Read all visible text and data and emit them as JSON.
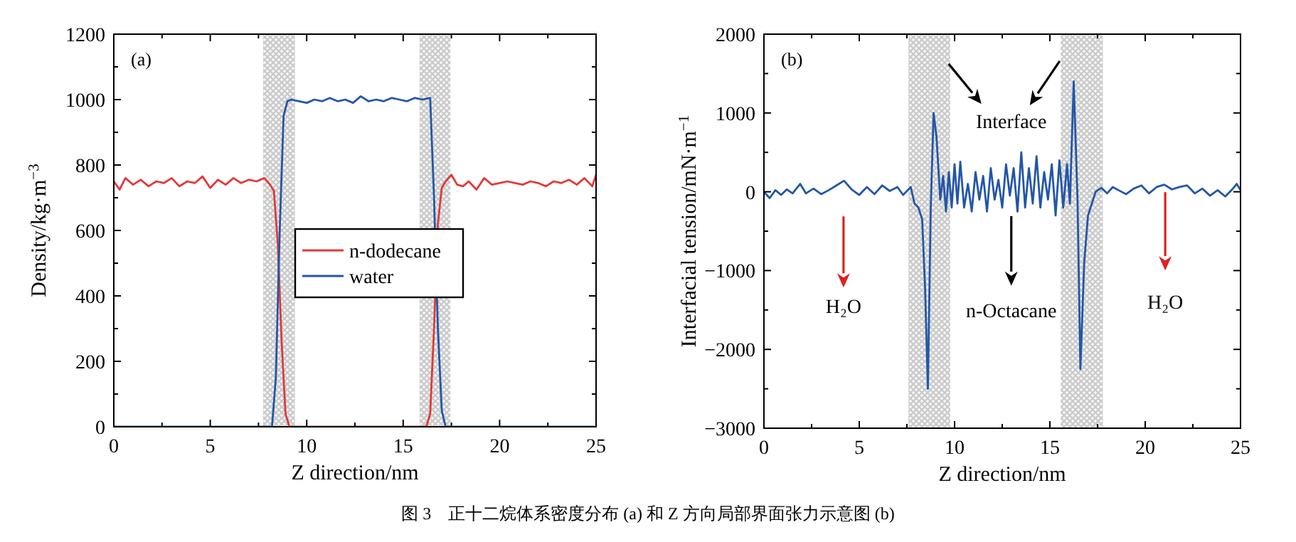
{
  "chart_data": [
    {
      "type": "line",
      "xlabel": "Z direction/nm",
      "ylabel": "Density/kg·m$^{−3}$",
      "xlim": [
        0,
        25
      ],
      "xticks": [
        0,
        5,
        10,
        15,
        20,
        25
      ],
      "ylim": [
        0,
        1200
      ],
      "yticks": [
        0,
        200,
        400,
        600,
        800,
        1000,
        1200
      ],
      "grid": false,
      "legend": "center",
      "annotations": [
        "(a)",
        "图 3　正十二烷体系密度分布 (a) 和 Z 方向局部界面张力示意图 (b)"
      ],
      "bands": [
        {
          "axis": "x",
          "from": 7.74,
          "to": 9.39,
          "color": "#c8c8c8"
        },
        {
          "axis": "x",
          "from": 15.85,
          "to": 17.45,
          "color": "#c8c8c8"
        }
      ],
      "series": [
        {
          "name": "n-dodecane",
          "color": "#e03a3a",
          "x": [
            0,
            0.3,
            0.6,
            1.0,
            1.4,
            1.8,
            2.2,
            2.6,
            3.0,
            3.4,
            3.8,
            4.2,
            4.6,
            5.0,
            5.4,
            5.8,
            6.2,
            6.6,
            7.0,
            7.4,
            7.8,
            8.1,
            8.3,
            8.5,
            8.7,
            8.9,
            9.1,
            16.2,
            16.4,
            16.6,
            16.8,
            17.0,
            17.2,
            17.5,
            17.8,
            18.1,
            18.4,
            18.8,
            19.2,
            19.6,
            20.0,
            20.4,
            20.8,
            21.2,
            21.6,
            22.0,
            22.4,
            22.8,
            23.2,
            23.6,
            24.0,
            24.4,
            24.8,
            25
          ],
          "values": [
            750,
            725,
            760,
            740,
            755,
            735,
            750,
            745,
            760,
            735,
            750,
            745,
            765,
            730,
            755,
            740,
            760,
            745,
            755,
            750,
            760,
            740,
            720,
            560,
            260,
            40,
            0,
            0,
            40,
            300,
            620,
            730,
            750,
            770,
            740,
            735,
            750,
            725,
            760,
            740,
            745,
            750,
            745,
            740,
            750,
            745,
            735,
            750,
            745,
            755,
            740,
            760,
            735,
            770
          ]
        },
        {
          "name": "water",
          "color": "#2356a8",
          "x": [
            0,
            8.2,
            8.4,
            8.6,
            8.8,
            9.0,
            9.2,
            9.6,
            10.0,
            10.4,
            10.8,
            11.2,
            11.6,
            12.0,
            12.4,
            12.8,
            13.2,
            13.6,
            14.0,
            14.4,
            14.8,
            15.2,
            15.6,
            16.0,
            16.4,
            16.6,
            16.8,
            17.0,
            17.2,
            25
          ],
          "values": [
            0,
            0,
            150,
            600,
            950,
            995,
            1000,
            995,
            990,
            1000,
            995,
            1005,
            995,
            1000,
            990,
            1010,
            995,
            1000,
            995,
            1005,
            1000,
            995,
            1005,
            1000,
            1005,
            700,
            300,
            50,
            0,
            0
          ]
        }
      ]
    },
    {
      "type": "line",
      "xlabel": "Z direction/nm",
      "ylabel": "Interfacial tension/mN·m$^{−1}$",
      "xlim": [
        0,
        25
      ],
      "xticks": [
        0,
        5,
        10,
        15,
        20,
        25
      ],
      "ylim": [
        -3000,
        2000
      ],
      "yticks": [
        {
          "value": -3000,
          "label": "−3000"
        },
        {
          "value": -2000,
          "label": "−2000"
        },
        {
          "value": -1000,
          "label": "−1000"
        },
        0,
        1000,
        2000
      ],
      "grid": false,
      "annotations": [
        "(b)",
        "Interface",
        "H₂O",
        "n-Octacane",
        "H₂O"
      ],
      "bands": [
        {
          "axis": "x",
          "from": 7.58,
          "to": 9.77,
          "color": "#c8c8c8"
        },
        {
          "axis": "x",
          "from": 15.57,
          "to": 17.78,
          "color": "#c8c8c8"
        }
      ],
      "series": [
        {
          "color": "#2356a8",
          "x": [
            0,
            0.3,
            0.6,
            0.9,
            1.2,
            1.5,
            1.9,
            2.2,
            2.6,
            3.0,
            3.4,
            3.8,
            4.2,
            4.6,
            5.0,
            5.4,
            5.8,
            6.2,
            6.6,
            7.0,
            7.3,
            7.7,
            7.9,
            8.1,
            8.3,
            8.45,
            8.6,
            8.75,
            8.9,
            9.05,
            9.25,
            9.4,
            9.55,
            9.7,
            9.85,
            10.0,
            10.15,
            10.3,
            10.5,
            10.7,
            10.9,
            11.1,
            11.3,
            11.5,
            11.7,
            11.9,
            12.1,
            12.3,
            12.5,
            12.7,
            12.9,
            13.1,
            13.3,
            13.5,
            13.7,
            13.9,
            14.1,
            14.3,
            14.5,
            14.7,
            14.9,
            15.1,
            15.3,
            15.5,
            15.7,
            15.9,
            16.05,
            16.25,
            16.45,
            16.6,
            16.8,
            17.0,
            17.2,
            17.4,
            17.7,
            18.0,
            18.3,
            18.6,
            19.0,
            19.4,
            19.8,
            20.2,
            20.6,
            21.0,
            21.4,
            21.8,
            22.2,
            22.6,
            23.0,
            23.4,
            23.8,
            24.2,
            24.6,
            24.8,
            25.0
          ],
          "values": [
            0,
            -80,
            20,
            -40,
            30,
            -20,
            100,
            -20,
            40,
            -30,
            20,
            80,
            140,
            30,
            -40,
            60,
            -30,
            80,
            10,
            60,
            -40,
            60,
            -150,
            -200,
            -350,
            -1200,
            -2500,
            -200,
            1000,
            700,
            -100,
            200,
            -250,
            250,
            -200,
            350,
            -150,
            380,
            -200,
            100,
            -250,
            250,
            -100,
            200,
            -250,
            300,
            -100,
            150,
            -200,
            350,
            -50,
            300,
            -250,
            500,
            -200,
            300,
            -150,
            450,
            -200,
            250,
            -100,
            350,
            -300,
            400,
            -200,
            350,
            -150,
            1400,
            -100,
            -2250,
            -900,
            -300,
            -150,
            0,
            50,
            -20,
            60,
            20,
            -30,
            40,
            80,
            -20,
            60,
            90,
            30,
            60,
            80,
            -20,
            40,
            -50,
            20,
            -60,
            40,
            100,
            20
          ]
        }
      ]
    }
  ]
}
